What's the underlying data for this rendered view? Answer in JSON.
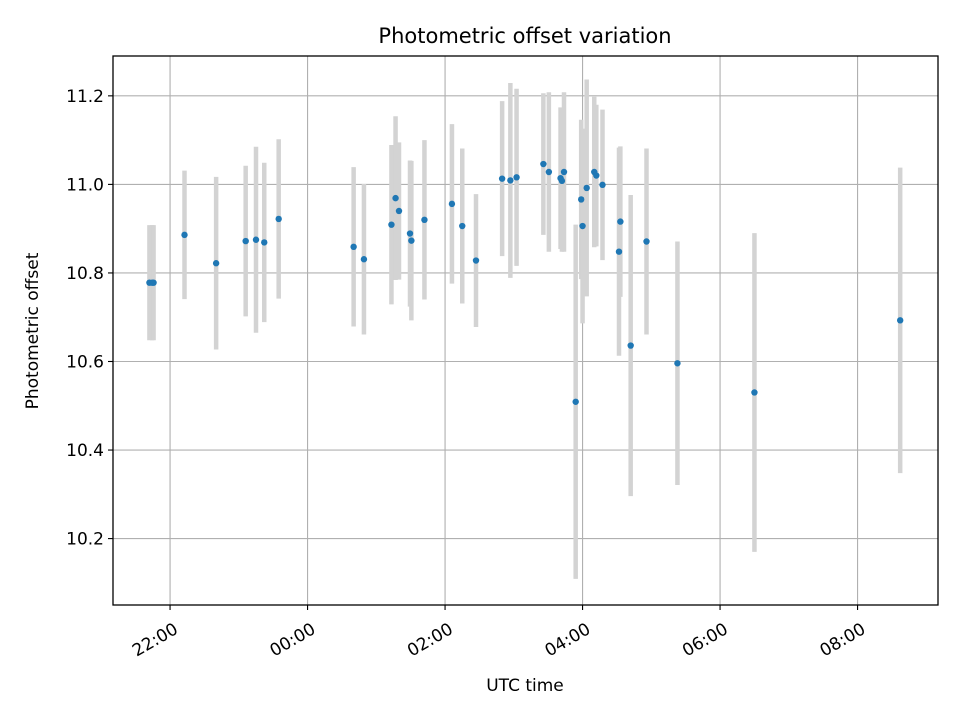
{
  "chart_data": {
    "type": "scatter",
    "title": "Photometric offset variation",
    "xlabel": "UTC time",
    "ylabel": "Photometric offset",
    "x_tick_labels": [
      "22:00",
      "00:00",
      "02:00",
      "04:00",
      "06:00",
      "08:00"
    ],
    "x_tick_hours": [
      -2,
      0,
      2,
      4,
      6,
      8
    ],
    "y_tick_labels": [
      "10.2",
      "10.4",
      "10.6",
      "10.8",
      "11.0",
      "11.2"
    ],
    "y_tick_values": [
      10.2,
      10.4,
      10.6,
      10.8,
      11.0,
      11.2
    ],
    "xlim_hours": [
      -2.83,
      9.17
    ],
    "ylim": [
      10.05,
      11.29
    ],
    "grid": true,
    "colors": {
      "marker": "#1f77b4",
      "errorbar": "#d3d3d3",
      "grid": "#b0b0b0"
    },
    "points": [
      {
        "t_hours": -2.3,
        "y": 10.778,
        "err": 0.13
      },
      {
        "t_hours": -2.26,
        "y": 10.778,
        "err": 0.13
      },
      {
        "t_hours": -2.24,
        "y": 10.778,
        "err": 0.13
      },
      {
        "t_hours": -1.79,
        "y": 10.886,
        "err": 0.145
      },
      {
        "t_hours": -1.33,
        "y": 10.822,
        "err": 0.195
      },
      {
        "t_hours": -0.9,
        "y": 10.872,
        "err": 0.17
      },
      {
        "t_hours": -0.75,
        "y": 10.875,
        "err": 0.21
      },
      {
        "t_hours": -0.63,
        "y": 10.869,
        "err": 0.18
      },
      {
        "t_hours": -0.42,
        "y": 10.922,
        "err": 0.18
      },
      {
        "t_hours": 0.67,
        "y": 10.859,
        "err": 0.18
      },
      {
        "t_hours": 0.82,
        "y": 10.831,
        "err": 0.17
      },
      {
        "t_hours": 1.22,
        "y": 10.909,
        "err": 0.18
      },
      {
        "t_hours": 1.28,
        "y": 10.969,
        "err": 0.185
      },
      {
        "t_hours": 1.33,
        "y": 10.94,
        "err": 0.155
      },
      {
        "t_hours": 1.49,
        "y": 10.889,
        "err": 0.165
      },
      {
        "t_hours": 1.51,
        "y": 10.873,
        "err": 0.18
      },
      {
        "t_hours": 1.7,
        "y": 10.92,
        "err": 0.18
      },
      {
        "t_hours": 2.1,
        "y": 10.956,
        "err": 0.18
      },
      {
        "t_hours": 2.25,
        "y": 10.906,
        "err": 0.175
      },
      {
        "t_hours": 2.45,
        "y": 10.828,
        "err": 0.15
      },
      {
        "t_hours": 2.83,
        "y": 11.013,
        "err": 0.175
      },
      {
        "t_hours": 2.95,
        "y": 11.009,
        "err": 0.22
      },
      {
        "t_hours": 3.04,
        "y": 11.016,
        "err": 0.2
      },
      {
        "t_hours": 3.43,
        "y": 11.046,
        "err": 0.16
      },
      {
        "t_hours": 3.51,
        "y": 11.028,
        "err": 0.18
      },
      {
        "t_hours": 3.68,
        "y": 11.014,
        "err": 0.16
      },
      {
        "t_hours": 3.7,
        "y": 11.008,
        "err": 0.16
      },
      {
        "t_hours": 3.73,
        "y": 11.028,
        "err": 0.18
      },
      {
        "t_hours": 3.9,
        "y": 10.509,
        "err": 0.4
      },
      {
        "t_hours": 3.98,
        "y": 10.966,
        "err": 0.18
      },
      {
        "t_hours": 4.0,
        "y": 10.906,
        "err": 0.22
      },
      {
        "t_hours": 4.06,
        "y": 10.992,
        "err": 0.245
      },
      {
        "t_hours": 4.17,
        "y": 11.028,
        "err": 0.17
      },
      {
        "t_hours": 4.2,
        "y": 11.02,
        "err": 0.16
      },
      {
        "t_hours": 4.29,
        "y": 10.999,
        "err": 0.17
      },
      {
        "t_hours": 4.53,
        "y": 10.848,
        "err": 0.235
      },
      {
        "t_hours": 4.55,
        "y": 10.916,
        "err": 0.17
      },
      {
        "t_hours": 4.7,
        "y": 10.636,
        "err": 0.34
      },
      {
        "t_hours": 4.93,
        "y": 10.871,
        "err": 0.21
      },
      {
        "t_hours": 5.38,
        "y": 10.596,
        "err": 0.275
      },
      {
        "t_hours": 6.5,
        "y": 10.53,
        "err": 0.36
      },
      {
        "t_hours": 8.62,
        "y": 10.693,
        "err": 0.345
      }
    ]
  }
}
